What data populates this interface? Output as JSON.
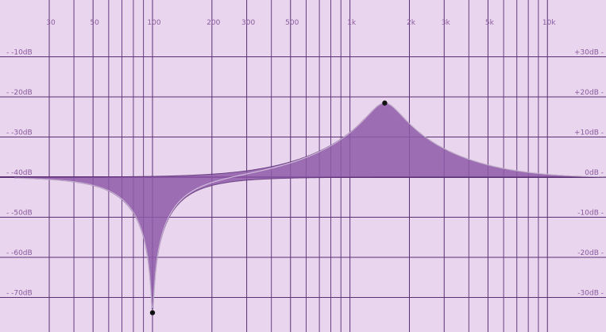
{
  "eq": {
    "colors": {
      "background": "#e9d6ee",
      "grid": "#5a2f73",
      "fill": "#8e5aa8",
      "curve": "#5a2f73",
      "label": "#8a5a9e",
      "point": "#111111"
    },
    "freq_min_hz": 20,
    "freq_max_hz": 20000,
    "freq_axis": {
      "scale": "log",
      "ticks": [
        30,
        50,
        100,
        200,
        300,
        500,
        1000,
        2000,
        3000,
        5000,
        10000
      ],
      "tick_labels": [
        "30",
        "50",
        "100",
        "200",
        "300",
        "500",
        "1k",
        "2k",
        "3k",
        "5k",
        "10k"
      ],
      "minor_ticks": [
        40,
        60,
        70,
        80,
        90,
        400,
        600,
        700,
        800,
        900,
        4000,
        6000,
        7000,
        8000,
        9000,
        20000
      ]
    },
    "left_axis": {
      "labels": [
        "-10dB",
        "-20dB",
        "-30dB",
        "-40dB",
        "-50dB",
        "-60dB",
        "-70dB"
      ],
      "values": [
        -10,
        -20,
        -30,
        -40,
        -50,
        -60,
        -70
      ],
      "range": [
        0,
        -80
      ]
    },
    "right_axis": {
      "labels": [
        "+30dB",
        "+20dB",
        "+10dB",
        "0dB",
        "-10dB",
        "-20dB",
        "-30dB"
      ],
      "values": [
        30,
        20,
        10,
        0,
        -10,
        -20,
        -30
      ],
      "range": [
        40,
        -40
      ]
    },
    "bands": [
      {
        "type": "peak",
        "freq_hz": 100,
        "gain_db": -34,
        "q": 6.0
      },
      {
        "type": "peak",
        "freq_hz": 1500,
        "gain_db": 18.5,
        "q": 0.9
      }
    ]
  }
}
